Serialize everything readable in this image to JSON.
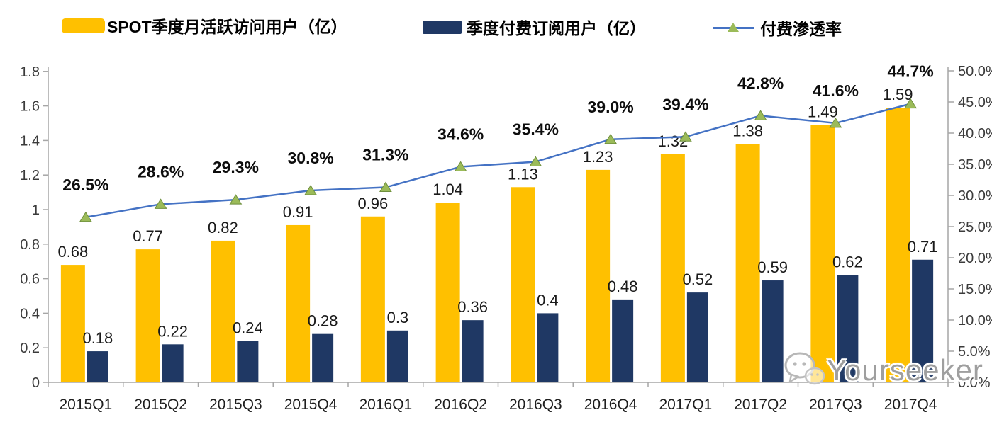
{
  "legend": {
    "items": [
      {
        "label": "SPOT季度月活跃访问用户（亿）",
        "swatch": "gold-bar-swatch"
      },
      {
        "label": "季度付费订阅用户（亿）",
        "swatch": "navy-bar-swatch"
      },
      {
        "label": "付费渗透率",
        "swatch": "blue-line-green-triangle-swatch"
      }
    ]
  },
  "watermark": {
    "text": "Yourseeker",
    "icon": "wechat-chat-bubbles-icon"
  },
  "chart_data": {
    "type": "combo-bar-line",
    "title": "",
    "categories": [
      "2015Q1",
      "2015Q2",
      "2015Q3",
      "2015Q4",
      "2016Q1",
      "2016Q2",
      "2016Q3",
      "2016Q4",
      "2017Q1",
      "2017Q2",
      "2017Q3",
      "2017Q4"
    ],
    "series": [
      {
        "name": "SPOT季度月活跃访问用户（亿）",
        "type": "bar",
        "axis": "left",
        "color": "#FFC000",
        "values": [
          0.68,
          0.77,
          0.82,
          0.91,
          0.96,
          1.04,
          1.13,
          1.23,
          1.32,
          1.38,
          1.49,
          1.59
        ],
        "labels": [
          "0.68",
          "0.77",
          "0.82",
          "0.91",
          "0.96",
          "1.04",
          "1.13",
          "1.23",
          "1.32",
          "1.38",
          "1.49",
          "1.59"
        ]
      },
      {
        "name": "季度付费订阅用户（亿）",
        "type": "bar",
        "axis": "left",
        "color": "#1F3864",
        "values": [
          0.18,
          0.22,
          0.24,
          0.28,
          0.3,
          0.36,
          0.4,
          0.48,
          0.52,
          0.59,
          0.62,
          0.71
        ],
        "labels": [
          "0.18",
          "0.22",
          "0.24",
          "0.28",
          "0.3",
          "0.36",
          "0.4",
          "0.48",
          "0.52",
          "0.59",
          "0.62",
          "0.71"
        ]
      },
      {
        "name": "付费渗透率",
        "type": "line",
        "axis": "right",
        "color": "#4472C4",
        "marker": "triangle",
        "marker_color": "#9BBB59",
        "marker_edge_color": "#6E8F3D",
        "values": [
          26.5,
          28.6,
          29.3,
          30.8,
          31.3,
          34.6,
          35.4,
          39.0,
          39.4,
          42.8,
          41.6,
          44.7
        ],
        "labels": [
          "26.5%",
          "28.6%",
          "29.3%",
          "30.8%",
          "31.3%",
          "34.6%",
          "35.4%",
          "39.0%",
          "39.4%",
          "42.8%",
          "41.6%",
          "44.7%"
        ]
      }
    ],
    "left_axis": {
      "min": 0,
      "max": 1.8,
      "ticks": [
        "0",
        "0.2",
        "0.4",
        "0.6",
        "0.8",
        "1",
        "1.2",
        "1.4",
        "1.6",
        "1.8"
      ]
    },
    "right_axis": {
      "min": 0,
      "max": 50,
      "ticks": [
        "0.0%",
        "5.0%",
        "10.0%",
        "15.0%",
        "20.0%",
        "25.0%",
        "30.0%",
        "35.0%",
        "40.0%",
        "45.0%",
        "50.0%"
      ]
    },
    "grid": false,
    "legend_position": "top",
    "axis_line_color": "#A6A6A6"
  }
}
